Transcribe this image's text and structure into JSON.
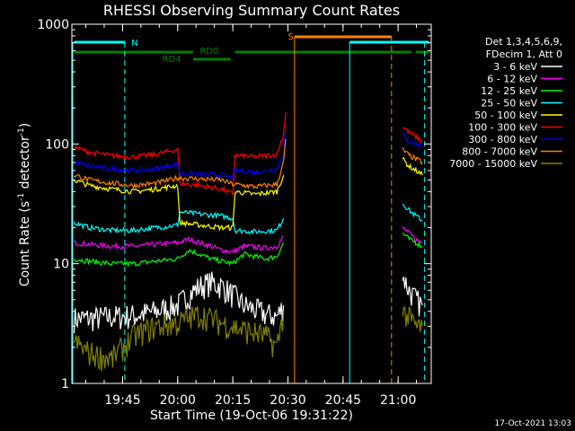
{
  "chart_data": {
    "type": "line",
    "title": "RHESSI Observing Summary Count Rates",
    "xlabel": "Start Time (19-Oct-06 19:31:22)",
    "ylabel_main": "Count Rate (s",
    "ylabel_sup1": "-1",
    "ylabel_mid": " detector",
    "ylabel_sup2": "-1",
    "ylabel_end": ")",
    "yscale": "log",
    "ylim": [
      1,
      1000
    ],
    "xlim_minutes": [
      19.52,
      21.15
    ],
    "xticks": [
      {
        "label": "19:45",
        "h": 19.75
      },
      {
        "label": "20:00",
        "h": 20.0
      },
      {
        "label": "20:15",
        "h": 20.25
      },
      {
        "label": "20:30",
        "h": 20.5
      },
      {
        "label": "20:45",
        "h": 20.75
      },
      {
        "label": "21:00",
        "h": 21.0
      }
    ],
    "yticks": [
      {
        "label": "1",
        "v": 1
      },
      {
        "label": "10",
        "v": 10
      },
      {
        "label": "100",
        "v": 100
      },
      {
        "label": "1000",
        "v": 1000
      }
    ],
    "legend": {
      "header": [
        "Det 1,3,4,5,6,9,",
        "FDecim 1, Att 0"
      ],
      "position": "right"
    },
    "series": [
      {
        "name": "3 - 6 keV",
        "color": "#ffffff",
        "segments": [
          {
            "x": [
              19.53,
              19.6,
              19.7,
              19.8,
              19.9,
              20.0,
              20.05,
              20.1,
              20.15,
              20.2,
              20.25,
              20.3,
              20.4,
              20.45,
              20.48
            ],
            "y": [
              3.5,
              3.5,
              3.6,
              3.7,
              4.0,
              4.5,
              5.5,
              6.5,
              7,
              6.5,
              5.5,
              4.5,
              3.8,
              3.6,
              4.5
            ]
          },
          {
            "x": [
              21.02,
              21.05,
              21.08,
              21.11
            ],
            "y": [
              8,
              6,
              5,
              4.5
            ]
          }
        ]
      },
      {
        "name": "6 - 12 keV",
        "color": "#ff00ff",
        "segments": [
          {
            "x": [
              19.53,
              19.6,
              19.7,
              19.8,
              19.9,
              20.0,
              20.05,
              20.1,
              20.15,
              20.2,
              20.25,
              20.3,
              20.4,
              20.45,
              20.48
            ],
            "y": [
              15,
              14.5,
              14,
              14,
              14.5,
              15,
              16,
              15,
              14,
              13,
              12.5,
              14,
              13.5,
              14,
              17
            ]
          },
          {
            "x": [
              21.02,
              21.05,
              21.08,
              21.11
            ],
            "y": [
              20,
              18,
              16,
              15
            ]
          }
        ]
      },
      {
        "name": "12 - 25 keV",
        "color": "#00ff00",
        "segments": [
          {
            "x": [
              19.53,
              19.6,
              19.7,
              19.8,
              19.9,
              20.0,
              20.05,
              20.1,
              20.15,
              20.2,
              20.25,
              20.3,
              20.4,
              20.45,
              20.48
            ],
            "y": [
              11,
              10.5,
              10,
              10,
              10.5,
              11,
              13,
              12,
              11,
              10.5,
              10,
              12,
              11,
              11.5,
              15
            ]
          },
          {
            "x": [
              21.02,
              21.05,
              21.08,
              21.11
            ],
            "y": [
              18,
              16,
              15,
              14
            ]
          }
        ]
      },
      {
        "name": "25 - 50 keV",
        "color": "#00ffff",
        "segments": [
          {
            "x": [
              19.53,
              19.6,
              19.7,
              19.8,
              19.9,
              20.0,
              20.01,
              20.1,
              20.2,
              20.25,
              20.26,
              20.35,
              20.45,
              20.48
            ],
            "y": [
              22,
              20,
              19,
              19,
              20,
              21,
              27,
              26,
              25,
              24,
              19,
              18.5,
              19,
              24
            ]
          },
          {
            "x": [
              21.02,
              21.05,
              21.08,
              21.11
            ],
            "y": [
              32,
              28,
              25,
              23
            ]
          }
        ]
      },
      {
        "name": "50 - 100 keV",
        "color": "#ffff00",
        "segments": [
          {
            "x": [
              19.53,
              19.6,
              19.7,
              19.8,
              19.9,
              20.0,
              20.01,
              20.1,
              20.2,
              20.25,
              20.26,
              20.35,
              20.45,
              20.48
            ],
            "y": [
              50,
              45,
              42,
              40,
              42,
              45,
              22,
              21,
              20,
              20,
              40,
              38,
              40,
              55
            ]
          },
          {
            "x": [
              21.02,
              21.05,
              21.08,
              21.11
            ],
            "y": [
              75,
              65,
              60,
              55
            ]
          }
        ]
      },
      {
        "name": "100 - 300 keV",
        "color": "#ff0000",
        "segments": [
          {
            "x": [
              19.53,
              19.6,
              19.7,
              19.8,
              19.9,
              20.0,
              20.01,
              20.1,
              20.2,
              20.25,
              20.26,
              20.35,
              20.45,
              20.48,
              20.49
            ],
            "y": [
              95,
              85,
              80,
              78,
              82,
              90,
              47,
              45,
              42,
              38,
              80,
              78,
              82,
              120,
              185
            ]
          },
          {
            "x": [
              21.02,
              21.05,
              21.08,
              21.11
            ],
            "y": [
              140,
              125,
              115,
              105
            ]
          }
        ]
      },
      {
        "name": "300 - 800 keV",
        "color": "#0000ff",
        "segments": [
          {
            "x": [
              19.53,
              19.6,
              19.7,
              19.8,
              19.9,
              20.0,
              20.01,
              20.1,
              20.2,
              20.25,
              20.26,
              20.35,
              20.45,
              20.48,
              20.49
            ],
            "y": [
              70,
              65,
              62,
              60,
              62,
              68,
              57,
              56,
              55,
              52,
              60,
              58,
              62,
              85,
              130
            ]
          },
          {
            "x": [
              21.02,
              21.05,
              21.08,
              21.11
            ],
            "y": [
              120,
              105,
              100,
              95
            ]
          }
        ]
      },
      {
        "name": "800 - 7000 keV",
        "color": "#ff8000",
        "segments": [
          {
            "x": [
              19.53,
              19.6,
              19.7,
              19.8,
              19.9,
              20.0,
              20.01,
              20.1,
              20.2,
              20.25,
              20.26,
              20.35,
              20.45,
              20.48,
              20.49
            ],
            "y": [
              55,
              50,
              47,
              45,
              47,
              52,
              52,
              51,
              50,
              46,
              46,
              44,
              46,
              70,
              110
            ]
          },
          {
            "x": [
              21.02,
              21.05,
              21.08,
              21.11
            ],
            "y": [
              90,
              80,
              75,
              70
            ]
          }
        ]
      },
      {
        "name": "7000 - 15000 keV",
        "color": "#808000",
        "segments": [
          {
            "x": [
              19.53,
              19.6,
              19.7,
              19.8,
              19.9,
              20.0,
              20.05,
              20.1,
              20.15,
              20.2,
              20.25,
              20.3,
              20.4,
              20.45,
              20.48
            ],
            "y": [
              2.2,
              1.8,
              1.6,
              2.5,
              3.0,
              3.2,
              3.5,
              3.8,
              3.5,
              3.2,
              3.0,
              2.8,
              2.5,
              2.0,
              4
            ]
          },
          {
            "x": [
              21.02,
              21.05,
              21.08,
              21.11
            ],
            "y": [
              4,
              3.5,
              3,
              3
            ]
          }
        ]
      }
    ],
    "annotations": {
      "N_label": "N",
      "S_label": "S",
      "RD0_label": "RD0",
      "RD4_label": "RD4"
    },
    "colors": {
      "cyan": "#00ffff",
      "orange": "#ff8000",
      "green": "#008000",
      "background": "#000000",
      "axes": "#ffffff"
    }
  },
  "footer": {
    "timestamp": "17-Oct-2021 13:03"
  }
}
